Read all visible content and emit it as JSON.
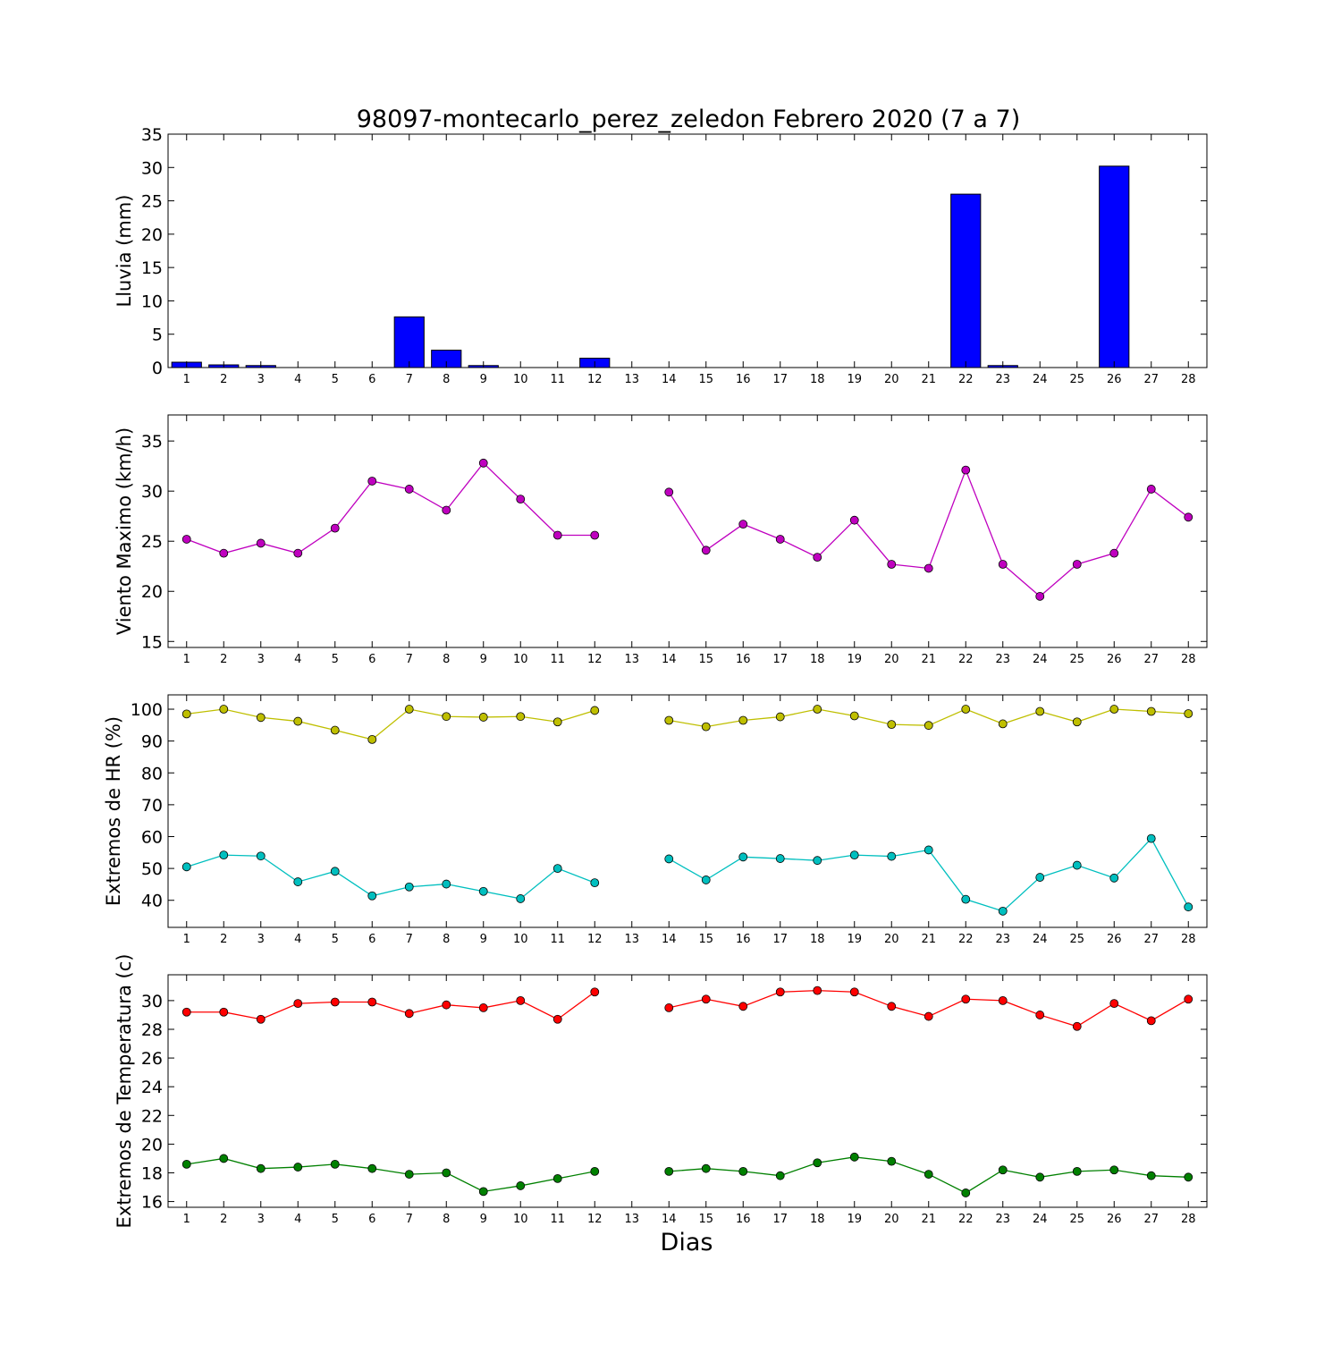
{
  "figure": {
    "title": "98097-montecarlo_perez_zeledon Febrero 2020  (7 a 7)",
    "xlabel": "Dias"
  },
  "chart_data": [
    {
      "type": "bar",
      "ylabel": "Lluvia (mm)",
      "ylim": [
        0,
        35
      ],
      "yticks": [
        0,
        5,
        10,
        15,
        20,
        25,
        30,
        35
      ],
      "xticks": [
        1,
        2,
        3,
        4,
        5,
        6,
        7,
        8,
        9,
        10,
        11,
        12,
        13,
        14,
        15,
        16,
        17,
        18,
        19,
        20,
        21,
        22,
        23,
        24,
        25,
        26,
        27,
        28
      ],
      "series": [
        {
          "color": "#0000ff",
          "points": [
            [
              1,
              0.8
            ],
            [
              2,
              0.4
            ],
            [
              3,
              0.3
            ],
            [
              4,
              0
            ],
            [
              5,
              0
            ],
            [
              6,
              0
            ],
            [
              7,
              7.6
            ],
            [
              8,
              2.6
            ],
            [
              9,
              0.3
            ],
            [
              10,
              0
            ],
            [
              11,
              0
            ],
            [
              12,
              1.4
            ],
            [
              14,
              0
            ],
            [
              15,
              0
            ],
            [
              16,
              0
            ],
            [
              17,
              0
            ],
            [
              18,
              0
            ],
            [
              19,
              0
            ],
            [
              20,
              0
            ],
            [
              21,
              0
            ],
            [
              22,
              26
            ],
            [
              23,
              0.3
            ],
            [
              24,
              0
            ],
            [
              25,
              0
            ],
            [
              26,
              30.2
            ],
            [
              27,
              0
            ],
            [
              28,
              0
            ]
          ]
        }
      ]
    },
    {
      "type": "line",
      "ylabel": "Viento Maximo (km/h)",
      "ylim": [
        14.4,
        37.6
      ],
      "yticks": [
        15,
        20,
        25,
        30,
        35
      ],
      "xticks": [
        1,
        2,
        3,
        4,
        5,
        6,
        7,
        8,
        9,
        10,
        11,
        12,
        13,
        14,
        15,
        16,
        17,
        18,
        19,
        20,
        21,
        22,
        23,
        24,
        25,
        26,
        27,
        28
      ],
      "series": [
        {
          "color": "#bf00bf",
          "points": [
            [
              1,
              25.2
            ],
            [
              2,
              23.8
            ],
            [
              3,
              24.8
            ],
            [
              4,
              23.8
            ],
            [
              5,
              26.3
            ],
            [
              6,
              31
            ],
            [
              7,
              30.2
            ],
            [
              8,
              28.1
            ],
            [
              9,
              32.8
            ],
            [
              10,
              29.2
            ],
            [
              11,
              25.6
            ],
            [
              12,
              25.6
            ],
            [
              14,
              29.9
            ],
            [
              15,
              24.1
            ],
            [
              16,
              26.7
            ],
            [
              17,
              25.2
            ],
            [
              18,
              23.4
            ],
            [
              19,
              27.1
            ],
            [
              20,
              22.7
            ],
            [
              21,
              22.3
            ],
            [
              22,
              32.1
            ],
            [
              23,
              22.7
            ],
            [
              24,
              19.5
            ],
            [
              25,
              22.7
            ],
            [
              26,
              23.8
            ],
            [
              27,
              30.2
            ],
            [
              28,
              27.4
            ]
          ]
        }
      ]
    },
    {
      "type": "line",
      "ylabel": "Extremos de HR (%)",
      "ylim": [
        31.5,
        104.5
      ],
      "yticks": [
        40,
        50,
        60,
        70,
        80,
        90,
        100
      ],
      "xticks": [
        1,
        2,
        3,
        4,
        5,
        6,
        7,
        8,
        9,
        10,
        11,
        12,
        13,
        14,
        15,
        16,
        17,
        18,
        19,
        20,
        21,
        22,
        23,
        24,
        25,
        26,
        27,
        28
      ],
      "series": [
        {
          "color": "#bfbf00",
          "points": [
            [
              1,
              98.5
            ],
            [
              2,
              100
            ],
            [
              3,
              97.4
            ],
            [
              4,
              96.2
            ],
            [
              5,
              93.4
            ],
            [
              6,
              90.5
            ],
            [
              7,
              100
            ],
            [
              8,
              97.7
            ],
            [
              9,
              97.5
            ],
            [
              10,
              97.7
            ],
            [
              11,
              96
            ],
            [
              12,
              99.6
            ],
            [
              14,
              96.5
            ],
            [
              15,
              94.5
            ],
            [
              16,
              96.5
            ],
            [
              17,
              97.6
            ],
            [
              18,
              100
            ],
            [
              19,
              97.9
            ],
            [
              20,
              95.2
            ],
            [
              21,
              94.9
            ],
            [
              22,
              100
            ],
            [
              23,
              95.4
            ],
            [
              24,
              99.3
            ],
            [
              25,
              96
            ],
            [
              26,
              100
            ],
            [
              27,
              99.3
            ],
            [
              28,
              98.6
            ]
          ]
        },
        {
          "color": "#00bfbf",
          "points": [
            [
              1,
              50.5
            ],
            [
              2,
              54.2
            ],
            [
              3,
              53.9
            ],
            [
              4,
              45.8
            ],
            [
              5,
              49.1
            ],
            [
              6,
              41.4
            ],
            [
              7,
              44.2
            ],
            [
              8,
              45.1
            ],
            [
              9,
              42.8
            ],
            [
              10,
              40.5
            ],
            [
              11,
              50
            ],
            [
              12,
              45.5
            ],
            [
              14,
              53
            ],
            [
              15,
              46.4
            ],
            [
              16,
              53.6
            ],
            [
              17,
              53.1
            ],
            [
              18,
              52.5
            ],
            [
              19,
              54.2
            ],
            [
              20,
              53.8
            ],
            [
              21,
              55.8
            ],
            [
              22,
              40.3
            ],
            [
              23,
              36.6
            ],
            [
              24,
              47.2
            ],
            [
              25,
              51
            ],
            [
              26,
              47
            ],
            [
              27,
              59.4
            ],
            [
              28,
              37.9
            ]
          ]
        }
      ]
    },
    {
      "type": "line",
      "ylabel": "Extremos de Temperatura (c)",
      "ylim": [
        15.6,
        31.8
      ],
      "yticks": [
        16,
        18,
        20,
        22,
        24,
        26,
        28,
        30
      ],
      "xticks": [
        1,
        2,
        3,
        4,
        5,
        6,
        7,
        8,
        9,
        10,
        11,
        12,
        13,
        14,
        15,
        16,
        17,
        18,
        19,
        20,
        21,
        22,
        23,
        24,
        25,
        26,
        27,
        28
      ],
      "series": [
        {
          "color": "#ff0000",
          "points": [
            [
              1,
              29.2
            ],
            [
              2,
              29.2
            ],
            [
              3,
              28.7
            ],
            [
              4,
              29.8
            ],
            [
              5,
              29.9
            ],
            [
              6,
              29.9
            ],
            [
              7,
              29.1
            ],
            [
              8,
              29.7
            ],
            [
              9,
              29.5
            ],
            [
              10,
              30
            ],
            [
              11,
              28.7
            ],
            [
              12,
              30.6
            ],
            [
              14,
              29.5
            ],
            [
              15,
              30.1
            ],
            [
              16,
              29.6
            ],
            [
              17,
              30.6
            ],
            [
              18,
              30.7
            ],
            [
              19,
              30.6
            ],
            [
              20,
              29.6
            ],
            [
              21,
              28.9
            ],
            [
              22,
              30.1
            ],
            [
              23,
              30
            ],
            [
              24,
              29
            ],
            [
              25,
              28.2
            ],
            [
              26,
              29.8
            ],
            [
              27,
              28.6
            ],
            [
              28,
              30.1
            ]
          ]
        },
        {
          "color": "#008000",
          "points": [
            [
              1,
              18.6
            ],
            [
              2,
              19
            ],
            [
              3,
              18.3
            ],
            [
              4,
              18.4
            ],
            [
              5,
              18.6
            ],
            [
              6,
              18.3
            ],
            [
              7,
              17.9
            ],
            [
              8,
              18
            ],
            [
              9,
              16.7
            ],
            [
              10,
              17.1
            ],
            [
              11,
              17.6
            ],
            [
              12,
              18.1
            ],
            [
              14,
              18.1
            ],
            [
              15,
              18.3
            ],
            [
              16,
              18.1
            ],
            [
              17,
              17.8
            ],
            [
              18,
              18.7
            ],
            [
              19,
              19.1
            ],
            [
              20,
              18.8
            ],
            [
              21,
              17.9
            ],
            [
              22,
              16.6
            ],
            [
              23,
              18.2
            ],
            [
              24,
              17.7
            ],
            [
              25,
              18.1
            ],
            [
              26,
              18.2
            ],
            [
              27,
              17.8
            ],
            [
              28,
              17.7
            ]
          ]
        }
      ]
    }
  ]
}
